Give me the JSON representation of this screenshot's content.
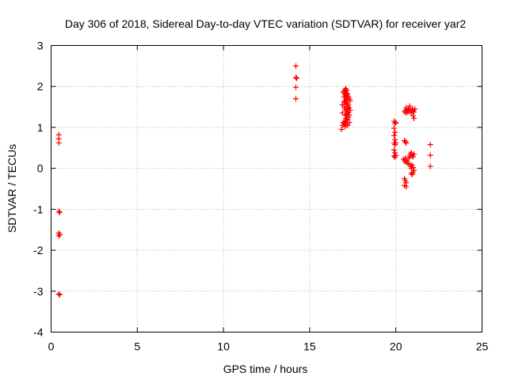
{
  "chart_data": {
    "type": "scatter",
    "title": "Day 306 of 2018, Sidereal Day-to-day VTEC variation (SDTVAR) for receiver yar2",
    "xlabel": "GPS time / hours",
    "ylabel": "SDTVAR / TECUs",
    "xlim": [
      0,
      25
    ],
    "ylim": [
      -4,
      3
    ],
    "xticks": [
      "0",
      "5",
      "10",
      "15",
      "20",
      "25"
    ],
    "yticks": [
      "-4",
      "-3",
      "-2",
      "-1",
      "0",
      "1",
      "2",
      "3"
    ],
    "grid": true,
    "marker": "+",
    "color": "#ff0000",
    "series": [
      {
        "name": "SDTVAR",
        "points": [
          [
            0.45,
            0.82
          ],
          [
            0.45,
            0.72
          ],
          [
            0.45,
            0.62
          ],
          [
            0.45,
            -1.05
          ],
          [
            0.5,
            -1.08
          ],
          [
            0.45,
            -1.58
          ],
          [
            0.45,
            -1.65
          ],
          [
            0.5,
            -1.62
          ],
          [
            0.45,
            -3.07
          ],
          [
            0.5,
            -3.09
          ],
          [
            14.2,
            2.5
          ],
          [
            14.2,
            2.22
          ],
          [
            14.25,
            2.2
          ],
          [
            14.2,
            1.98
          ],
          [
            14.2,
            1.7
          ],
          [
            16.85,
            0.95
          ],
          [
            16.9,
            1.05
          ],
          [
            16.95,
            1.12
          ],
          [
            16.9,
            1.35
          ],
          [
            16.9,
            1.55
          ],
          [
            16.95,
            1.85
          ],
          [
            17.0,
            1.88
          ],
          [
            17.0,
            1.75
          ],
          [
            17.0,
            1.62
          ],
          [
            17.0,
            1.5
          ],
          [
            17.05,
            1.92
          ],
          [
            17.05,
            1.8
          ],
          [
            17.05,
            1.65
          ],
          [
            17.05,
            1.45
          ],
          [
            17.05,
            1.3
          ],
          [
            17.05,
            1.15
          ],
          [
            17.05,
            1.02
          ],
          [
            17.1,
            1.95
          ],
          [
            17.1,
            1.85
          ],
          [
            17.1,
            1.72
          ],
          [
            17.1,
            1.58
          ],
          [
            17.1,
            1.4
          ],
          [
            17.1,
            1.22
          ],
          [
            17.1,
            1.08
          ],
          [
            17.15,
            1.9
          ],
          [
            17.15,
            1.78
          ],
          [
            17.15,
            1.6
          ],
          [
            17.15,
            1.45
          ],
          [
            17.15,
            1.32
          ],
          [
            17.15,
            1.18
          ],
          [
            17.2,
            1.82
          ],
          [
            17.2,
            1.68
          ],
          [
            17.2,
            1.5
          ],
          [
            17.2,
            1.35
          ],
          [
            17.2,
            1.2
          ],
          [
            17.25,
            1.75
          ],
          [
            17.25,
            1.55
          ],
          [
            17.25,
            1.38
          ],
          [
            17.25,
            1.25
          ],
          [
            17.3,
            1.7
          ],
          [
            17.3,
            1.48
          ],
          [
            17.3,
            1.3
          ],
          [
            17.3,
            1.12
          ],
          [
            17.35,
            1.65
          ],
          [
            17.35,
            1.42
          ],
          [
            17.0,
            1.1
          ],
          [
            17.2,
            1.05
          ],
          [
            19.9,
            1.15
          ],
          [
            19.95,
            1.1
          ],
          [
            19.9,
            0.98
          ],
          [
            19.95,
            0.88
          ],
          [
            19.9,
            0.8
          ],
          [
            19.95,
            0.7
          ],
          [
            19.9,
            0.62
          ],
          [
            19.95,
            0.58
          ],
          [
            19.9,
            0.45
          ],
          [
            19.95,
            0.38
          ],
          [
            19.9,
            0.3
          ],
          [
            19.95,
            0.27
          ],
          [
            20.0,
            0.32
          ],
          [
            20.0,
            0.62
          ],
          [
            20.0,
            1.12
          ],
          [
            20.5,
            1.38
          ],
          [
            20.55,
            1.42
          ],
          [
            20.6,
            1.35
          ],
          [
            20.6,
            1.48
          ],
          [
            20.65,
            1.4
          ],
          [
            20.7,
            1.38
          ],
          [
            20.75,
            1.45
          ],
          [
            20.8,
            1.52
          ],
          [
            20.85,
            1.42
          ],
          [
            20.9,
            1.35
          ],
          [
            20.95,
            1.45
          ],
          [
            21.0,
            1.42
          ],
          [
            21.05,
            1.38
          ],
          [
            21.0,
            1.28
          ],
          [
            21.05,
            1.22
          ],
          [
            21.1,
            1.45
          ],
          [
            20.5,
            0.68
          ],
          [
            20.55,
            0.65
          ],
          [
            20.6,
            0.62
          ],
          [
            20.45,
            0.22
          ],
          [
            20.5,
            0.18
          ],
          [
            20.55,
            0.25
          ],
          [
            20.6,
            0.15
          ],
          [
            20.65,
            0.2
          ],
          [
            20.7,
            0.12
          ],
          [
            20.75,
            0.25
          ],
          [
            20.8,
            0.3
          ],
          [
            20.85,
            0.35
          ],
          [
            20.9,
            0.38
          ],
          [
            20.95,
            0.32
          ],
          [
            21.0,
            0.28
          ],
          [
            21.05,
            0.35
          ],
          [
            20.8,
            0.1
          ],
          [
            20.85,
            0.05
          ],
          [
            20.9,
            0.0
          ],
          [
            20.95,
            0.08
          ],
          [
            21.0,
            0.02
          ],
          [
            21.05,
            -0.05
          ],
          [
            20.9,
            -0.12
          ],
          [
            20.95,
            -0.15
          ],
          [
            21.0,
            -0.1
          ],
          [
            20.5,
            -0.25
          ],
          [
            20.55,
            -0.3
          ],
          [
            20.5,
            -0.42
          ],
          [
            20.6,
            -0.45
          ],
          [
            20.6,
            -0.35
          ],
          [
            22.0,
            0.58
          ],
          [
            22.0,
            0.32
          ],
          [
            22.0,
            0.05
          ]
        ]
      }
    ]
  }
}
